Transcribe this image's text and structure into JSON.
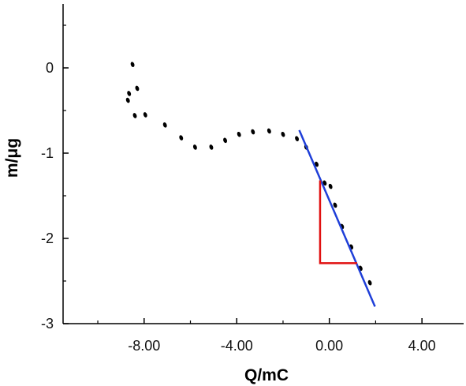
{
  "chart_data": {
    "type": "scatter",
    "title": "",
    "xlabel": "Q/mC",
    "ylabel": "m/μg",
    "xlim": [
      -11.5,
      5.8
    ],
    "ylim": [
      -3.0,
      0.75
    ],
    "grid": false,
    "x_ticks": [
      -8,
      -4,
      0,
      4
    ],
    "x_tick_labels": [
      "-8.00",
      "-4.00",
      "0.00",
      "4.00"
    ],
    "x_minor_ticks": [
      -10,
      -6,
      -2,
      2
    ],
    "y_ticks": [
      0,
      -1,
      -2,
      -3
    ],
    "y_tick_labels": [
      "0",
      "-1",
      "-2",
      "-3"
    ],
    "y_minor_ticks": [
      0.5,
      -0.5,
      -1.5,
      -2.5
    ],
    "series": [
      {
        "style": "dots",
        "color": "#000000",
        "points": [
          [
            -8.5,
            0.04
          ],
          [
            -8.3,
            -0.24
          ],
          [
            -8.65,
            -0.3
          ],
          [
            -8.7,
            -0.38
          ],
          [
            -8.4,
            -0.56
          ],
          [
            -7.95,
            -0.55
          ],
          [
            -7.1,
            -0.67
          ],
          [
            -6.4,
            -0.82
          ],
          [
            -5.8,
            -0.93
          ],
          [
            -5.1,
            -0.93
          ],
          [
            -4.5,
            -0.85
          ],
          [
            -3.9,
            -0.78
          ],
          [
            -3.3,
            -0.75
          ],
          [
            -2.6,
            -0.74
          ],
          [
            -2.0,
            -0.78
          ],
          [
            -1.4,
            -0.83
          ],
          [
            -1.0,
            -0.93
          ],
          [
            -0.55,
            -1.13
          ],
          [
            -0.2,
            -1.35
          ],
          [
            0.05,
            -1.39
          ],
          [
            0.25,
            -1.61
          ],
          [
            0.55,
            -1.86
          ],
          [
            0.95,
            -2.1
          ],
          [
            1.35,
            -2.35
          ],
          [
            1.75,
            -2.52
          ]
        ]
      },
      {
        "style": "fit-line",
        "color": "#1f3fd8",
        "points": [
          [
            -1.3,
            -0.73
          ],
          [
            1.97,
            -2.8
          ]
        ]
      },
      {
        "style": "slope-triangle",
        "color": "#e01010",
        "points": [
          [
            -0.4,
            -1.32
          ],
          [
            -0.4,
            -2.29
          ],
          [
            1.2,
            -2.29
          ]
        ]
      }
    ]
  }
}
